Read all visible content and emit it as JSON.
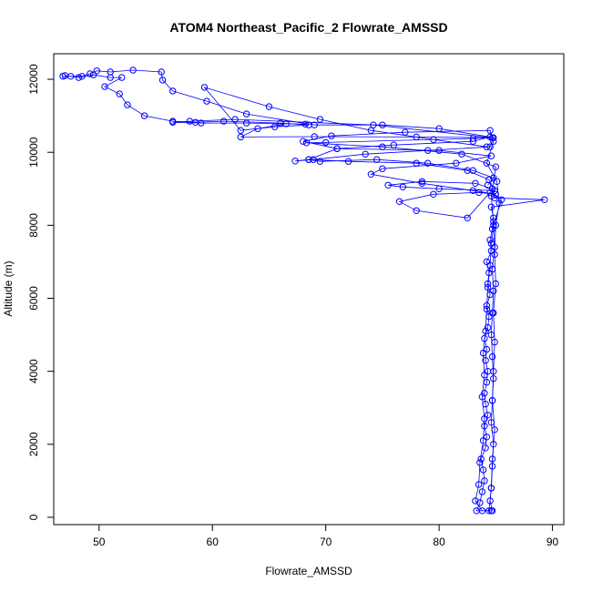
{
  "chart_data": {
    "type": "line",
    "title": "ATOM4 Northeast_Pacific_2 Flowrate_AMSSD",
    "xlabel": "Flowrate_AMSSD",
    "ylabel": "Altitude (m)",
    "xlim": [
      46,
      91
    ],
    "ylim": [
      -200,
      12700
    ],
    "x_ticks": [
      50,
      60,
      70,
      80,
      90
    ],
    "y_ticks": [
      0,
      2000,
      4000,
      6000,
      8000,
      10000,
      12000
    ],
    "grid": false,
    "legend": "none",
    "color": "#0000ff",
    "series": [
      {
        "points": [
          [
            84.6,
            180
          ],
          [
            83.3,
            180
          ],
          [
            83.6,
            400
          ],
          [
            83.8,
            700
          ],
          [
            84.0,
            1000
          ],
          [
            83.9,
            1300
          ],
          [
            83.7,
            1600
          ],
          [
            84.1,
            1900
          ],
          [
            84.2,
            2200
          ],
          [
            84.0,
            2500
          ],
          [
            84.3,
            2800
          ],
          [
            84.1,
            3100
          ],
          [
            84.0,
            3400
          ],
          [
            84.2,
            3700
          ],
          [
            84.3,
            4000
          ],
          [
            84.1,
            4300
          ],
          [
            84.2,
            4600
          ],
          [
            84.0,
            4900
          ],
          [
            84.3,
            5200
          ],
          [
            84.4,
            5500
          ],
          [
            84.2,
            5800
          ],
          [
            84.5,
            6100
          ],
          [
            84.3,
            6400
          ],
          [
            84.4,
            6700
          ],
          [
            84.2,
            7000
          ],
          [
            84.6,
            7300
          ],
          [
            84.5,
            7600
          ],
          [
            84.7,
            7900
          ],
          [
            84.8,
            8200
          ],
          [
            84.6,
            8500
          ],
          [
            89.3,
            8700
          ],
          [
            84.9,
            8750
          ],
          [
            84.7,
            9000
          ],
          [
            83.2,
            9150
          ],
          [
            78.5,
            9200
          ],
          [
            75.5,
            9100
          ],
          [
            76.8,
            9050
          ],
          [
            80.0,
            9000
          ],
          [
            84.9,
            8950
          ],
          [
            84.4,
            9250
          ],
          [
            82.5,
            9500
          ],
          [
            78.0,
            9700
          ],
          [
            72.0,
            9750
          ],
          [
            68.5,
            9800
          ],
          [
            67.3,
            9760
          ],
          [
            68.9,
            9800
          ],
          [
            73.5,
            9950
          ],
          [
            79.0,
            10050
          ],
          [
            84.5,
            10150
          ],
          [
            84.8,
            10400
          ],
          [
            78.0,
            10420
          ],
          [
            69.0,
            10430
          ],
          [
            62.5,
            10420
          ],
          [
            64.0,
            10650
          ],
          [
            66.5,
            10780
          ],
          [
            68.2,
            10770
          ],
          [
            63.0,
            10800
          ],
          [
            59.0,
            10800
          ],
          [
            56.5,
            10820
          ],
          [
            58.0,
            10850
          ],
          [
            62.0,
            10900
          ],
          [
            74.2,
            10750
          ],
          [
            84.7,
            10400
          ],
          [
            83.0,
            10380
          ],
          [
            70.0,
            10270
          ],
          [
            68.3,
            10260
          ],
          [
            75.0,
            10150
          ],
          [
            82.0,
            9950
          ],
          [
            85.0,
            9600
          ],
          [
            84.6,
            8800
          ],
          [
            84.8,
            8100
          ],
          [
            84.9,
            7400
          ],
          [
            84.7,
            6800
          ],
          [
            84.8,
            6200
          ],
          [
            84.7,
            5600
          ],
          [
            84.6,
            5000
          ],
          [
            84.7,
            4400
          ],
          [
            84.8,
            3800
          ],
          [
            84.7,
            3200
          ],
          [
            84.6,
            2600
          ],
          [
            84.8,
            2000
          ],
          [
            84.7,
            1400
          ],
          [
            84.6,
            800
          ],
          [
            84.5,
            450
          ],
          [
            84.7,
            180
          ]
        ]
      },
      {
        "points": [
          [
            83.8,
            180
          ],
          [
            83.2,
            450
          ],
          [
            83.5,
            900
          ],
          [
            83.6,
            1500
          ],
          [
            83.9,
            2100
          ],
          [
            84.0,
            2700
          ],
          [
            83.8,
            3300
          ],
          [
            84.0,
            3900
          ],
          [
            83.9,
            4500
          ],
          [
            84.1,
            5100
          ],
          [
            84.2,
            5700
          ],
          [
            84.3,
            6300
          ],
          [
            84.5,
            6900
          ],
          [
            84.6,
            7500
          ],
          [
            84.8,
            8000
          ],
          [
            85.5,
            8700
          ],
          [
            84.5,
            8900
          ],
          [
            82.5,
            8200
          ],
          [
            78.0,
            8400
          ],
          [
            76.5,
            8650
          ],
          [
            79.5,
            8850
          ],
          [
            83.5,
            8900
          ],
          [
            85.0,
            8850
          ],
          [
            83.0,
            8950
          ],
          [
            78.5,
            9150
          ],
          [
            74.0,
            9400
          ],
          [
            75.0,
            9550
          ],
          [
            81.5,
            9700
          ],
          [
            84.6,
            9900
          ],
          [
            80.0,
            10050
          ],
          [
            71.0,
            10100
          ],
          [
            68.0,
            10300
          ],
          [
            70.5,
            10450
          ],
          [
            77.0,
            10550
          ],
          [
            84.5,
            10600
          ],
          [
            84.8,
            10300
          ],
          [
            84.2,
            9700
          ],
          [
            85.1,
            9200
          ],
          [
            85.3,
            8600
          ],
          [
            85.0,
            8000
          ],
          [
            84.9,
            7200
          ],
          [
            85.0,
            6400
          ],
          [
            84.8,
            5600
          ],
          [
            84.9,
            4800
          ],
          [
            84.8,
            4000
          ],
          [
            84.7,
            3200
          ],
          [
            84.9,
            2400
          ],
          [
            84.7,
            1600
          ],
          [
            84.6,
            800
          ],
          [
            84.4,
            180
          ]
        ]
      },
      {
        "points": [
          [
            46.8,
            12080
          ],
          [
            47.5,
            12080
          ],
          [
            48.5,
            12080
          ],
          [
            49.2,
            12150
          ],
          [
            49.8,
            12230
          ],
          [
            51.0,
            12200
          ],
          [
            53.0,
            12250
          ],
          [
            55.5,
            12200
          ],
          [
            55.6,
            11980
          ],
          [
            56.5,
            11680
          ],
          [
            59.5,
            11400
          ],
          [
            63.0,
            11050
          ],
          [
            69.0,
            10750
          ],
          [
            75.0,
            10750
          ],
          [
            80.0,
            10650
          ],
          [
            84.5,
            10420
          ],
          [
            83.0,
            10300
          ],
          [
            76.0,
            10200
          ],
          [
            71.0,
            10100
          ],
          [
            68.5,
            9800
          ],
          [
            69.5,
            9750
          ],
          [
            74.5,
            9800
          ],
          [
            79.0,
            9700
          ],
          [
            83.0,
            9500
          ],
          [
            84.8,
            9300
          ],
          [
            84.3,
            9100
          ]
        ]
      },
      {
        "points": [
          [
            47.0,
            12100
          ],
          [
            48.2,
            12050
          ],
          [
            49.5,
            12120
          ],
          [
            51.0,
            12050
          ],
          [
            52.0,
            12050
          ],
          [
            50.5,
            11800
          ],
          [
            51.8,
            11600
          ],
          [
            52.5,
            11300
          ],
          [
            54.0,
            11000
          ],
          [
            56.5,
            10850
          ],
          [
            58.5,
            10820
          ],
          [
            61.0,
            10850
          ],
          [
            66.0,
            10800
          ],
          [
            68.5,
            10750
          ],
          [
            65.5,
            10700
          ],
          [
            62.5,
            10600
          ],
          [
            59.3,
            11780
          ],
          [
            65.0,
            11250
          ],
          [
            69.5,
            10900
          ],
          [
            74.0,
            10600
          ],
          [
            79.5,
            10350
          ],
          [
            84.2,
            10150
          ]
        ]
      }
    ]
  }
}
